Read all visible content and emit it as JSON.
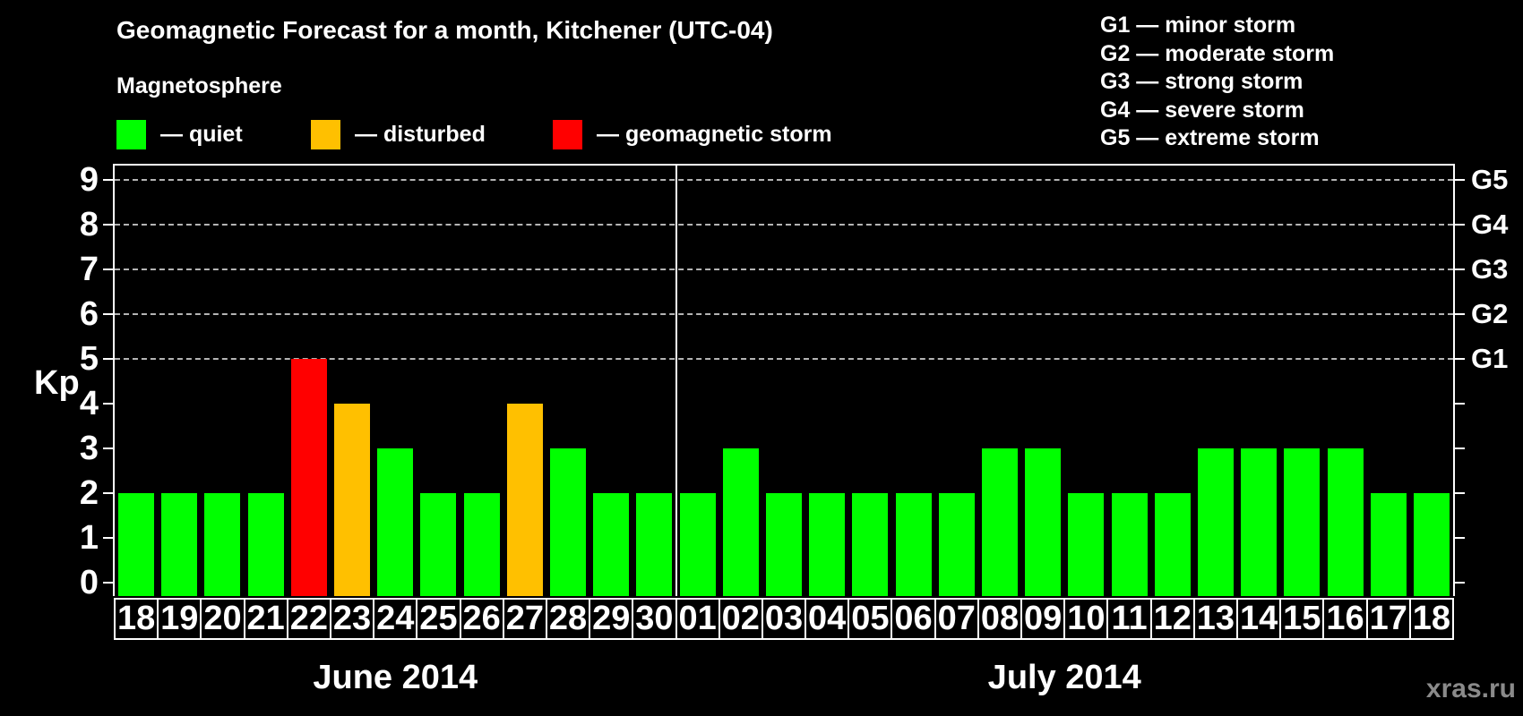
{
  "title": "Geomagnetic Forecast for a month, Kitchener (UTC-04)",
  "magnetosphere": {
    "heading": "Magnetosphere",
    "legend": [
      {
        "key": "quiet",
        "label": "— quiet",
        "color": "#00ff00"
      },
      {
        "key": "disturbed",
        "label": "— disturbed",
        "color": "#ffc000"
      },
      {
        "key": "storm",
        "label": "— geomagnetic storm",
        "color": "#ff0000"
      }
    ]
  },
  "g_scale_legend": [
    {
      "code": "G1",
      "label": "G1 — minor storm"
    },
    {
      "code": "G2",
      "label": "G2 — moderate storm"
    },
    {
      "code": "G3",
      "label": "G3 — strong storm"
    },
    {
      "code": "G4",
      "label": "G4 — severe storm"
    },
    {
      "code": "G5",
      "label": "G5 — extreme storm"
    }
  ],
  "axis": {
    "y_label": "Kp",
    "y_ticks": [
      "0",
      "1",
      "2",
      "3",
      "4",
      "5",
      "6",
      "7",
      "8",
      "9"
    ],
    "right_labels": [
      {
        "text": "G1",
        "kp": 5
      },
      {
        "text": "G2",
        "kp": 6
      },
      {
        "text": "G3",
        "kp": 7
      },
      {
        "text": "G4",
        "kp": 8
      },
      {
        "text": "G5",
        "kp": 9
      }
    ]
  },
  "months": [
    {
      "label": "June 2014",
      "days": 13
    },
    {
      "label": "July 2014",
      "days": 18
    }
  ],
  "watermark": "xras.ru",
  "chart_data": {
    "type": "bar",
    "title": "Geomagnetic Forecast for a month, Kitchener (UTC-04)",
    "ylabel": "Kp",
    "ylim": [
      0,
      9
    ],
    "grid": "dashed horizontal lines at Kp 5-9 (G1-G5)",
    "gridlines_at": [
      5,
      6,
      7,
      8,
      9
    ],
    "legend_position": "top-left",
    "status_colors": {
      "quiet": "#00ff00",
      "disturbed": "#ffc000",
      "storm": "#ff0000"
    },
    "bars": [
      {
        "month": "June 2014",
        "day": "18",
        "kp": 2,
        "status": "quiet"
      },
      {
        "month": "June 2014",
        "day": "19",
        "kp": 2,
        "status": "quiet"
      },
      {
        "month": "June 2014",
        "day": "20",
        "kp": 2,
        "status": "quiet"
      },
      {
        "month": "June 2014",
        "day": "21",
        "kp": 2,
        "status": "quiet"
      },
      {
        "month": "June 2014",
        "day": "22",
        "kp": 5,
        "status": "storm"
      },
      {
        "month": "June 2014",
        "day": "23",
        "kp": 4,
        "status": "disturbed"
      },
      {
        "month": "June 2014",
        "day": "24",
        "kp": 3,
        "status": "quiet"
      },
      {
        "month": "June 2014",
        "day": "25",
        "kp": 2,
        "status": "quiet"
      },
      {
        "month": "June 2014",
        "day": "26",
        "kp": 2,
        "status": "quiet"
      },
      {
        "month": "June 2014",
        "day": "27",
        "kp": 4,
        "status": "disturbed"
      },
      {
        "month": "June 2014",
        "day": "28",
        "kp": 3,
        "status": "quiet"
      },
      {
        "month": "June 2014",
        "day": "29",
        "kp": 2,
        "status": "quiet"
      },
      {
        "month": "June 2014",
        "day": "30",
        "kp": 2,
        "status": "quiet"
      },
      {
        "month": "July 2014",
        "day": "01",
        "kp": 2,
        "status": "quiet"
      },
      {
        "month": "July 2014",
        "day": "02",
        "kp": 3,
        "status": "quiet"
      },
      {
        "month": "July 2014",
        "day": "03",
        "kp": 2,
        "status": "quiet"
      },
      {
        "month": "July 2014",
        "day": "04",
        "kp": 2,
        "status": "quiet"
      },
      {
        "month": "July 2014",
        "day": "05",
        "kp": 2,
        "status": "quiet"
      },
      {
        "month": "July 2014",
        "day": "06",
        "kp": 2,
        "status": "quiet"
      },
      {
        "month": "July 2014",
        "day": "07",
        "kp": 2,
        "status": "quiet"
      },
      {
        "month": "July 2014",
        "day": "08",
        "kp": 3,
        "status": "quiet"
      },
      {
        "month": "July 2014",
        "day": "09",
        "kp": 3,
        "status": "quiet"
      },
      {
        "month": "July 2014",
        "day": "10",
        "kp": 2,
        "status": "quiet"
      },
      {
        "month": "July 2014",
        "day": "11",
        "kp": 2,
        "status": "quiet"
      },
      {
        "month": "July 2014",
        "day": "12",
        "kp": 2,
        "status": "quiet"
      },
      {
        "month": "July 2014",
        "day": "13",
        "kp": 3,
        "status": "quiet"
      },
      {
        "month": "July 2014",
        "day": "14",
        "kp": 3,
        "status": "quiet"
      },
      {
        "month": "July 2014",
        "day": "15",
        "kp": 3,
        "status": "quiet"
      },
      {
        "month": "July 2014",
        "day": "16",
        "kp": 3,
        "status": "quiet"
      },
      {
        "month": "July 2014",
        "day": "17",
        "kp": 2,
        "status": "quiet"
      },
      {
        "month": "July 2014",
        "day": "18",
        "kp": 2,
        "status": "quiet"
      }
    ]
  }
}
